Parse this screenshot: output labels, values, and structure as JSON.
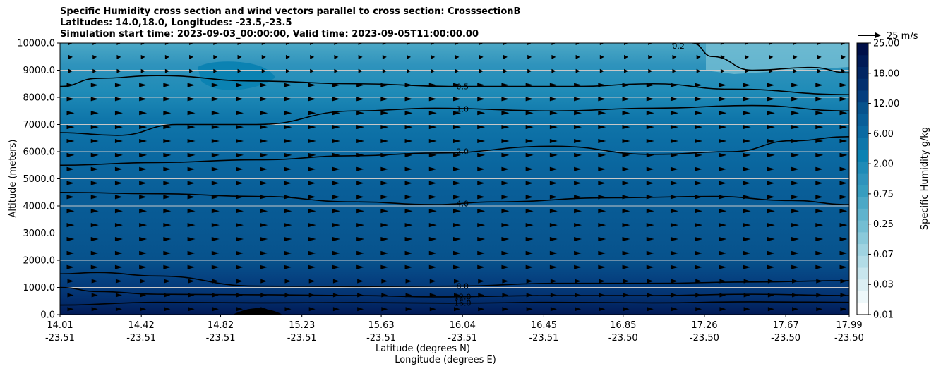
{
  "title": {
    "line1": "Specific Humidity cross section and wind vectors parallel to cross section: CrosssectionB",
    "line2": "Latitudes: 14.0,18.0, Longitudes: -23.5,-23.5",
    "line3": "Simulation start time: 2023-09-03_00:00:00, Valid time: 2023-09-05T11:00:00.00"
  },
  "chart_data": {
    "type": "contourf_with_vectors",
    "ylabel": "Altitude (meters)",
    "xlabel_lat": "Latitude (degrees N)",
    "xlabel_lon": "Longitude (degrees E)",
    "ylim": [
      0,
      10000
    ],
    "yticks": [
      "0.0",
      "1000.0",
      "2000.0",
      "3000.0",
      "4000.0",
      "5000.0",
      "6000.0",
      "7000.0",
      "8000.0",
      "9000.0",
      "10000.0"
    ],
    "ytick_values": [
      0,
      1000,
      2000,
      3000,
      4000,
      5000,
      6000,
      7000,
      8000,
      9000,
      10000
    ],
    "xtick_lat": [
      "14.01",
      "14.42",
      "14.82",
      "15.23",
      "15.63",
      "16.04",
      "16.45",
      "16.85",
      "17.26",
      "17.67",
      "17.99"
    ],
    "xtick_lon": [
      "-23.51",
      "-23.51",
      "-23.51",
      "-23.51",
      "-23.51",
      "-23.51",
      "-23.51",
      "-23.50",
      "-23.50",
      "-23.50",
      "-23.50"
    ],
    "xtick_values": [
      14.01,
      14.42,
      14.82,
      15.23,
      15.63,
      16.04,
      16.45,
      16.85,
      17.26,
      17.67,
      17.99
    ],
    "xlim": [
      14.01,
      17.99
    ],
    "grid": "horizontal",
    "colorbar": {
      "label": "Specific Humidity g/kg",
      "levels": [
        0.01,
        0.02,
        0.03,
        0.05,
        0.07,
        0.1,
        0.15,
        0.25,
        0.35,
        0.5,
        0.75,
        1.0,
        1.5,
        2.0,
        3.0,
        4.0,
        6.0,
        8.0,
        12.0,
        14.0,
        18.0,
        21.0,
        25.0
      ],
      "tick_labels": [
        "0.01",
        "0.03",
        "0.07",
        "0.25",
        "0.75",
        "2.00",
        "6.00",
        "12.00",
        "18.00",
        "25.00"
      ],
      "colors": [
        "#ffffff",
        "#eef8fa",
        "#dceff3",
        "#c8e6ee",
        "#b2dce7",
        "#9fd3e1",
        "#8ac9da",
        "#74bed3",
        "#60b3cd",
        "#4ca8c6",
        "#379dbf",
        "#2f93bc",
        "#1f8bb7",
        "#0b82b2",
        "#0f76aa",
        "#0b6aa2",
        "#095e98",
        "#07528c",
        "#053e7e",
        "#03306f",
        "#022562",
        "#011a56",
        "#000f48"
      ]
    },
    "contour_lines": [
      {
        "level": 16.0,
        "label": "16.0",
        "points": [
          [
            14.01,
            350
          ],
          [
            14.5,
            450
          ],
          [
            15.0,
            430
          ],
          [
            15.5,
            440
          ],
          [
            16.0,
            420
          ],
          [
            16.5,
            450
          ],
          [
            17.0,
            430
          ],
          [
            17.5,
            470
          ],
          [
            17.99,
            450
          ]
        ]
      },
      {
        "level": 12.0,
        "label": "12.0",
        "points": [
          [
            14.01,
            1000
          ],
          [
            14.2,
            850
          ],
          [
            14.5,
            750
          ],
          [
            15.0,
            730
          ],
          [
            15.5,
            700
          ],
          [
            15.9,
            650
          ],
          [
            16.5,
            700
          ],
          [
            17.0,
            700
          ],
          [
            17.5,
            750
          ],
          [
            17.99,
            700
          ]
        ]
      },
      {
        "level": 8.0,
        "label": "8.0",
        "points": [
          [
            14.01,
            1500
          ],
          [
            14.2,
            1550
          ],
          [
            14.5,
            1420
          ],
          [
            15.0,
            1050
          ],
          [
            15.5,
            1030
          ],
          [
            16.0,
            1050
          ],
          [
            16.5,
            1150
          ],
          [
            17.0,
            1150
          ],
          [
            17.5,
            1200
          ],
          [
            17.99,
            1250
          ]
        ]
      },
      {
        "level": 4.0,
        "label": "4.0",
        "points": [
          [
            14.01,
            4500
          ],
          [
            14.5,
            4450
          ],
          [
            15.0,
            4350
          ],
          [
            15.5,
            4150
          ],
          [
            15.9,
            4050
          ],
          [
            16.2,
            4150
          ],
          [
            16.8,
            4300
          ],
          [
            17.3,
            4350
          ],
          [
            17.7,
            4200
          ],
          [
            17.99,
            4050
          ]
        ]
      },
      {
        "level": 2.0,
        "label": "2.0",
        "points": [
          [
            14.01,
            5500
          ],
          [
            14.5,
            5600
          ],
          [
            15.0,
            5700
          ],
          [
            15.5,
            5850
          ],
          [
            15.9,
            5950
          ],
          [
            16.5,
            6200
          ],
          [
            17.0,
            5900
          ],
          [
            17.4,
            6000
          ],
          [
            17.7,
            6400
          ],
          [
            17.99,
            6550
          ]
        ]
      },
      {
        "level": 1.0,
        "label": "1.0",
        "points": [
          [
            14.01,
            6700
          ],
          [
            14.3,
            6600
          ],
          [
            14.6,
            7000
          ],
          [
            15.0,
            7000
          ],
          [
            15.5,
            7500
          ],
          [
            15.9,
            7600
          ],
          [
            16.5,
            7500
          ],
          [
            17.0,
            7600
          ],
          [
            17.5,
            7700
          ],
          [
            17.99,
            7500
          ]
        ]
      },
      {
        "level": 0.5,
        "label": "0.5",
        "points": [
          [
            14.01,
            8400
          ],
          [
            14.2,
            8700
          ],
          [
            14.5,
            8800
          ],
          [
            15.0,
            8600
          ],
          [
            15.5,
            8500
          ],
          [
            16.0,
            8400
          ],
          [
            16.6,
            8400
          ],
          [
            17.0,
            8500
          ],
          [
            17.4,
            8300
          ],
          [
            17.99,
            8100
          ]
        ]
      },
      {
        "level": 0.2,
        "label": "0.2",
        "points": [
          [
            17.2,
            10000
          ],
          [
            17.3,
            9500
          ],
          [
            17.5,
            9000
          ],
          [
            17.8,
            9100
          ],
          [
            17.99,
            8900
          ]
        ]
      }
    ],
    "wind_reference": {
      "label": "25 m/s",
      "speed": 25
    }
  }
}
